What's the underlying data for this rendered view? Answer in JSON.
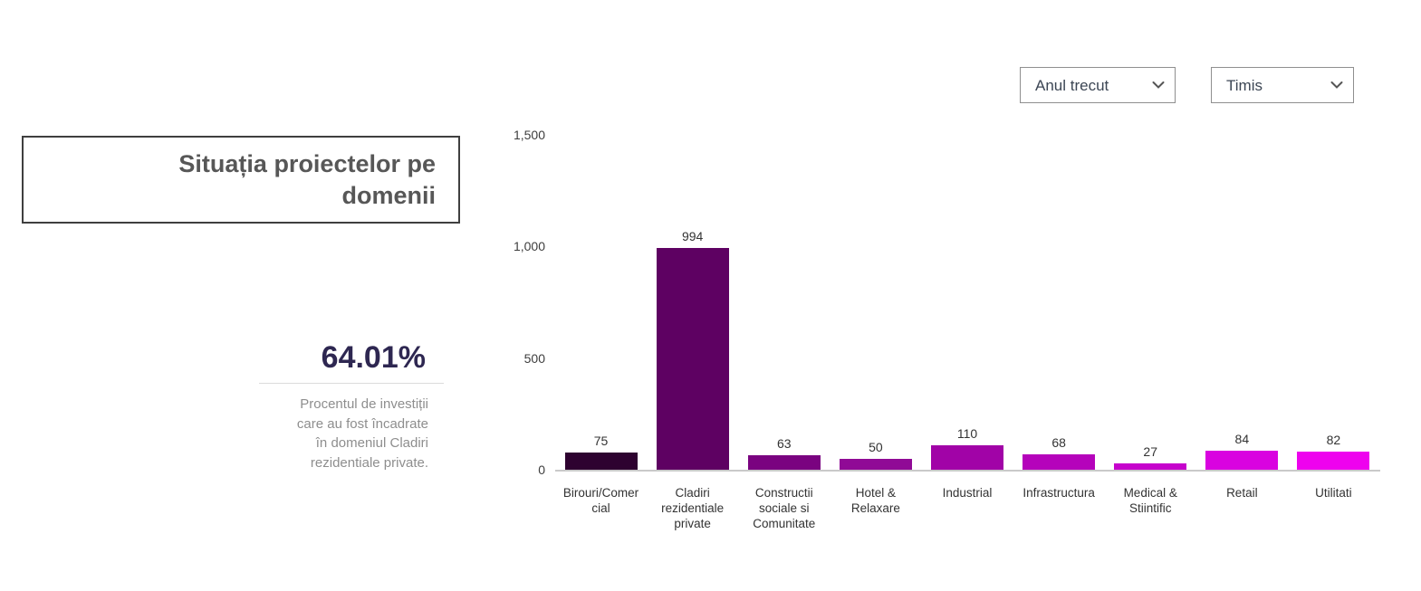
{
  "filters": {
    "period_select": {
      "value": "Anul trecut"
    },
    "region_select": {
      "value": "Timis"
    }
  },
  "panel": {
    "title": "Situația proiectelor pe\ndomenii",
    "kpi_value": "64.01%",
    "kpi_description": "Procentul de investiții\ncare au fost încadrate\nîn domeniul Cladiri\nrezidentiale private."
  },
  "chart_data": {
    "type": "bar",
    "title": "Situația proiectelor pe domenii",
    "categories": [
      "Birouri/Comercial",
      "Cladiri rezidentiale private",
      "Constructii sociale si Comunitate",
      "Hotel & Relaxare",
      "Industrial",
      "Infrastructura",
      "Medical & Stiintific",
      "Retail",
      "Utilitati"
    ],
    "display_labels": [
      "Birouri/Comer\ncial",
      "Cladiri\nrezidentiale\nprivate",
      "Constructii\nsociale si\nComunitate",
      "Hotel &\nRelaxare",
      "Industrial",
      "Infrastructura",
      "Medical &\nStiintific",
      "Retail",
      "Utilitati"
    ],
    "values": [
      75,
      994,
      63,
      50,
      110,
      68,
      27,
      84,
      82
    ],
    "bar_colors": [
      "#2e0230",
      "#5e0162",
      "#7a0380",
      "#900a96",
      "#a103a7",
      "#b503bb",
      "#c603cc",
      "#d903e0",
      "#ee02ee"
    ],
    "xlabel": "",
    "ylabel": "",
    "y_axis": {
      "min": 0,
      "max": 1500,
      "tick_values": [
        0,
        500,
        1000,
        1500
      ],
      "tick_labels": [
        "0",
        "500",
        "1,000",
        "1,500"
      ]
    },
    "value_labels_shown": true,
    "grid": false,
    "legend": "none"
  },
  "colors": {
    "kpi_text": "#2e2751",
    "title_text": "#575757",
    "description_text": "#8e8e8e",
    "axis_line": "#c9c9c9"
  }
}
